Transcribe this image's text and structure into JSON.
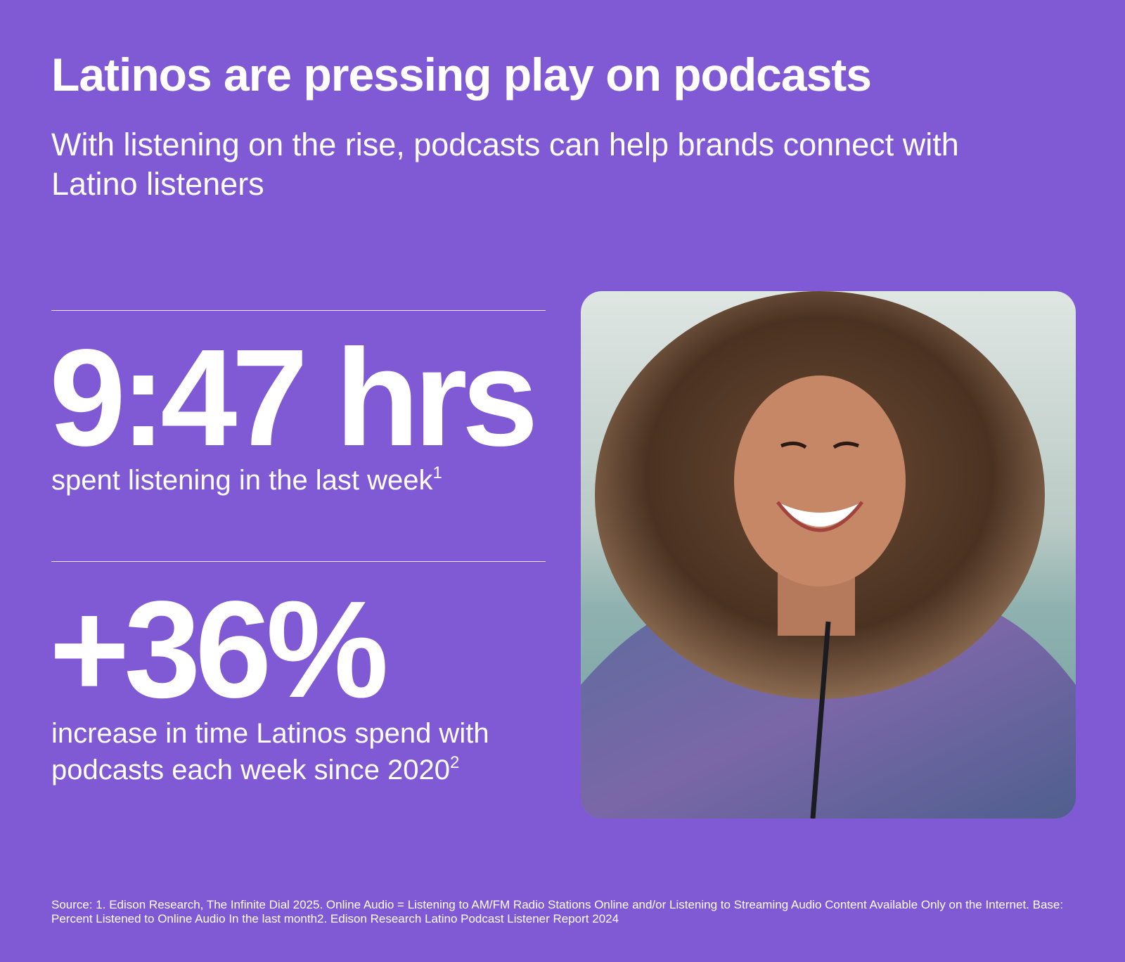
{
  "header": {
    "title": "Latinos are pressing play on podcasts",
    "subtitle": "With listening on the rise, podcasts can help brands connect with Latino listeners"
  },
  "stats": [
    {
      "value": "9:47 hrs",
      "label": "spent listening in the last week",
      "note": "1"
    },
    {
      "value": "+36%",
      "label": "increase in time Latinos spend with podcasts each week since 2020",
      "note": "2"
    }
  ],
  "footer": {
    "source": "Source: 1. Edison Research, The Infinite Dial 2025. Online Audio = Listening to AM/FM Radio Stations Online and/or Listening to Streaming Audio Content Available Only on the Internet. Base: Percent Listened to Online Audio In the last month2. Edison Research Latino Podcast Listener Report 2024"
  }
}
